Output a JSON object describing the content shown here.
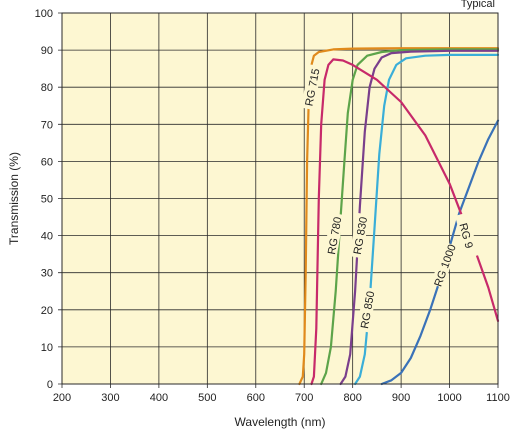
{
  "chart_data": {
    "type": "line",
    "title": "",
    "annotation": "Typical",
    "xlabel": "Wavelength (nm)",
    "ylabel": "Transmission (%)",
    "xlim": [
      200,
      1100
    ],
    "ylim": [
      0,
      100
    ],
    "x_ticks": [
      200,
      300,
      400,
      500,
      600,
      700,
      800,
      900,
      1000,
      1100
    ],
    "y_ticks": [
      0,
      10,
      20,
      30,
      40,
      50,
      60,
      70,
      80,
      90,
      100
    ],
    "grid": true,
    "background_color": "#fdf7d2",
    "grid_color": "#2a2a2a",
    "series": [
      {
        "name": "RG 715",
        "color": "#e08a1c",
        "label_at": {
          "x": 716,
          "y": 80,
          "angle": -79
        },
        "points": [
          [
            690,
            0
          ],
          [
            697,
            2
          ],
          [
            700,
            8
          ],
          [
            703,
            30
          ],
          [
            706,
            60
          ],
          [
            710,
            80
          ],
          [
            715,
            86
          ],
          [
            720,
            88.5
          ],
          [
            730,
            89.5
          ],
          [
            760,
            90.2
          ],
          [
            800,
            90.4
          ],
          [
            900,
            90.5
          ],
          [
            1000,
            90.5
          ],
          [
            1100,
            90.5
          ]
        ]
      },
      {
        "name": "RG 780",
        "color": "#5da44a",
        "label_at": {
          "x": 762,
          "y": 40,
          "angle": -80
        },
        "points": [
          [
            735,
            0
          ],
          [
            745,
            3
          ],
          [
            755,
            10
          ],
          [
            765,
            25
          ],
          [
            775,
            45
          ],
          [
            783,
            60
          ],
          [
            790,
            73
          ],
          [
            800,
            82
          ],
          [
            810,
            86
          ],
          [
            830,
            88.5
          ],
          [
            860,
            89.5
          ],
          [
            900,
            90
          ],
          [
            1000,
            90.2
          ],
          [
            1100,
            90.2
          ]
        ]
      },
      {
        "name": "RG 830",
        "color": "#7a3f8c",
        "label_at": {
          "x": 815,
          "y": 40,
          "angle": -80
        },
        "points": [
          [
            775,
            0
          ],
          [
            785,
            2
          ],
          [
            795,
            8
          ],
          [
            805,
            25
          ],
          [
            815,
            48
          ],
          [
            825,
            68
          ],
          [
            835,
            80
          ],
          [
            845,
            85
          ],
          [
            860,
            88
          ],
          [
            880,
            89.2
          ],
          [
            920,
            89.6
          ],
          [
            1000,
            89.8
          ],
          [
            1100,
            89.8
          ]
        ]
      },
      {
        "name": "RG 850",
        "color": "#3aaed8",
        "label_at": {
          "x": 830,
          "y": 20,
          "angle": -80
        },
        "points": [
          [
            805,
            0
          ],
          [
            815,
            2
          ],
          [
            825,
            8
          ],
          [
            835,
            22
          ],
          [
            845,
            42
          ],
          [
            855,
            62
          ],
          [
            865,
            75
          ],
          [
            875,
            82
          ],
          [
            890,
            86
          ],
          [
            910,
            87.8
          ],
          [
            950,
            88.5
          ],
          [
            1000,
            88.7
          ],
          [
            1100,
            88.7
          ]
        ]
      },
      {
        "name": "RG 1000",
        "color": "#3a72b8",
        "label_at": {
          "x": 990,
          "y": 32,
          "angle": -70
        },
        "points": [
          [
            860,
            0
          ],
          [
            880,
            1
          ],
          [
            900,
            3
          ],
          [
            920,
            7
          ],
          [
            940,
            13
          ],
          [
            960,
            20
          ],
          [
            980,
            28
          ],
          [
            1000,
            37
          ],
          [
            1020,
            46
          ],
          [
            1040,
            53
          ],
          [
            1060,
            60
          ],
          [
            1080,
            66
          ],
          [
            1100,
            71
          ]
        ]
      },
      {
        "name": "RG 9",
        "color": "#c72a6a",
        "label_at": {
          "x": 1035,
          "y": 40,
          "angle": 75
        },
        "points": [
          [
            715,
            0
          ],
          [
            720,
            2
          ],
          [
            725,
            15
          ],
          [
            730,
            50
          ],
          [
            735,
            70
          ],
          [
            742,
            82
          ],
          [
            750,
            86
          ],
          [
            760,
            87.5
          ],
          [
            780,
            87.2
          ],
          [
            800,
            86
          ],
          [
            850,
            82
          ],
          [
            900,
            76
          ],
          [
            950,
            67
          ],
          [
            1000,
            54
          ],
          [
            1050,
            37
          ],
          [
            1080,
            26
          ],
          [
            1100,
            17
          ]
        ]
      }
    ]
  }
}
